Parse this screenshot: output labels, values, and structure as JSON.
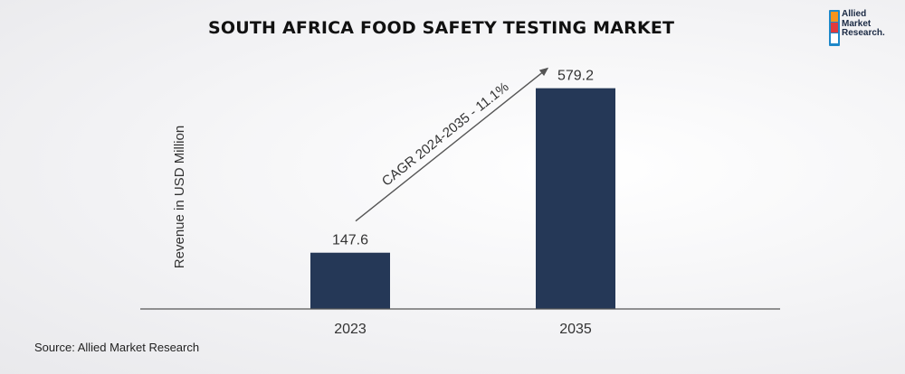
{
  "chart_data": {
    "type": "bar",
    "title": "SOUTH AFRICA FOOD SAFETY TESTING MARKET",
    "ylabel": "Revenue in USD Million",
    "xlabel": "",
    "categories": [
      "2023",
      "2035"
    ],
    "values": [
      147.6,
      579.2
    ],
    "value_labels": [
      "147.6",
      "579.2"
    ],
    "annotation": "CAGR 2024-2035 - 11.1%",
    "ylim": [
      0,
      640
    ],
    "grid": false,
    "legend": "none",
    "colors": {
      "bar": "#253857",
      "axis": "#555555",
      "text": "#333333",
      "arrow": "#555555"
    }
  },
  "logo": {
    "lines": [
      "Allied",
      "Market",
      "Research."
    ],
    "colors": {
      "orange": "#f7941d",
      "blue": "#1e88c9",
      "red": "#e03a3e",
      "navy": "#1b2a44"
    }
  },
  "source": "Source: Allied Market Research"
}
